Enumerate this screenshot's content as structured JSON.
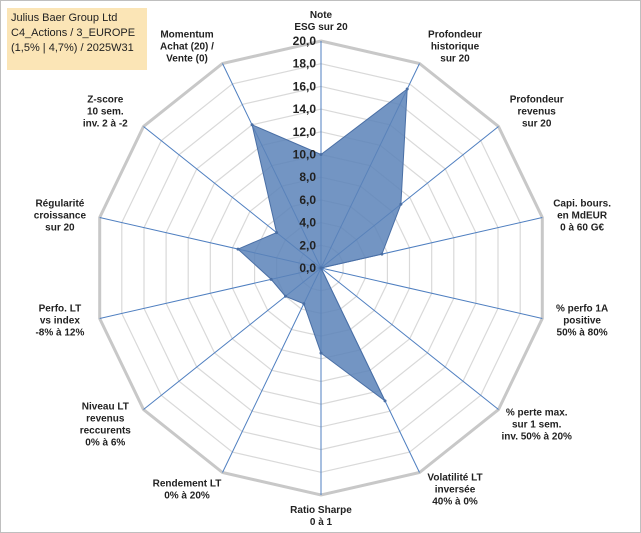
{
  "info_box": {
    "line1": "Julius Baer Group Ltd",
    "line2": "C4_Actions / 3_EUROPE",
    "line3": "(1,5% | 4,7%) / 2025W31"
  },
  "chart_data": {
    "type": "radar",
    "title": "",
    "rlim": [
      0,
      20
    ],
    "rticks": [
      "0,0",
      "2,0",
      "4,0",
      "6,0",
      "8,0",
      "10,0",
      "12,0",
      "14,0",
      "16,0",
      "18,0",
      "20,0"
    ],
    "grid": true,
    "colors": {
      "fill": "#5a82b8",
      "stroke": "#4a6fa5",
      "grid": "#d9d9d9",
      "spoke": "#4f7fc0"
    },
    "axes": [
      {
        "label": [
          "Note",
          "ESG sur 20"
        ],
        "value": 10.0
      },
      {
        "label": [
          "Profondeur",
          "historique",
          "sur 20"
        ],
        "value": 17.5
      },
      {
        "label": [
          "Profondeur",
          "revenus",
          "sur 20"
        ],
        "value": 9.0
      },
      {
        "label": [
          "Capi. bours.",
          "en MdEUR",
          "0 à 60 G€"
        ],
        "value": 5.5
      },
      {
        "label": [
          "% perfo 1A",
          "positive",
          "50% à 80%"
        ],
        "value": 0.0
      },
      {
        "label": [
          "% perte max.",
          "sur 1 sem.",
          "inv. 50% à 20%"
        ],
        "value": 0.0
      },
      {
        "label": [
          "Volatilité LT",
          "inversée",
          "40% à 0%"
        ],
        "value": 13.0
      },
      {
        "label": [
          "Ratio Sharpe",
          "0 à 1"
        ],
        "value": 7.5
      },
      {
        "label": [
          "Rendement LT",
          "0% à 20%"
        ],
        "value": 3.5
      },
      {
        "label": [
          "Niveau LT",
          "revenus",
          "reccurents",
          "0% à 6%"
        ],
        "value": 4.0
      },
      {
        "label": [
          "Perfo. LT",
          "vs index",
          "-8% à 12%"
        ],
        "value": 4.5
      },
      {
        "label": [
          "Régularité",
          "croissance",
          "sur 20"
        ],
        "value": 7.5
      },
      {
        "label": [
          "Z-score",
          "10 sem.",
          "inv. 2 à -2"
        ],
        "value": 5.0
      },
      {
        "label": [
          "Momentum",
          "Achat (20) /",
          "Vente (0)"
        ],
        "value": 14.0
      }
    ]
  }
}
